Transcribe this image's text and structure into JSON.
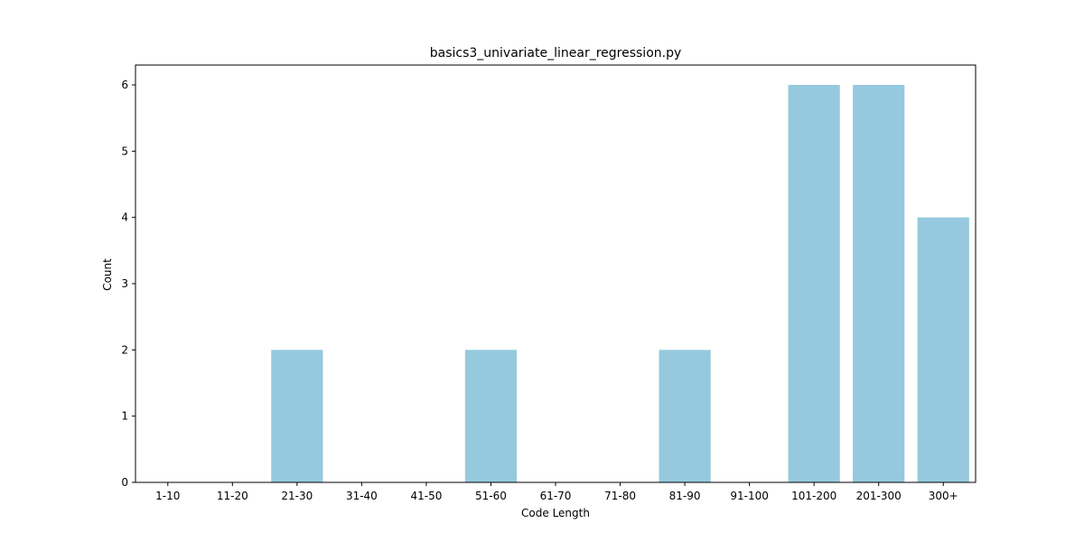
{
  "chart_data": {
    "type": "bar",
    "title": "basics3_univariate_linear_regression.py",
    "xlabel": "Code Length",
    "ylabel": "Count",
    "categories": [
      "1-10",
      "11-20",
      "21-30",
      "31-40",
      "41-50",
      "51-60",
      "61-70",
      "71-80",
      "81-90",
      "91-100",
      "101-200",
      "201-300",
      "300+"
    ],
    "values": [
      0,
      0,
      2,
      0,
      0,
      2,
      0,
      0,
      2,
      0,
      6,
      6,
      4
    ],
    "ylim": [
      0,
      6.3
    ],
    "yticks": [
      0,
      1,
      2,
      3,
      4,
      5,
      6
    ],
    "grid": false,
    "bar_color": "#96c9de",
    "axis_color": "#000000"
  }
}
